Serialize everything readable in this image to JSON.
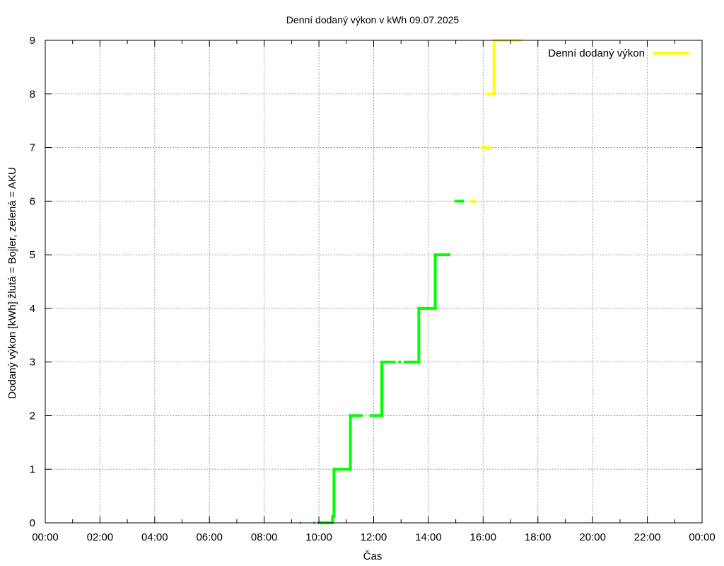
{
  "chart_data": {
    "type": "line",
    "title": "Denní dodaný výkon v kWh 09.07.2025",
    "xlabel": "Čas",
    "ylabel": "Dodaný výkon [kWh]  žlutá = Bojler, zelená = AKU",
    "xlim": [
      0,
      24
    ],
    "ylim": [
      0,
      9
    ],
    "x_ticks": [
      "00:00",
      "02:00",
      "04:00",
      "06:00",
      "08:00",
      "10:00",
      "12:00",
      "14:00",
      "16:00",
      "18:00",
      "20:00",
      "22:00",
      "00:00"
    ],
    "y_ticks": [
      "0",
      "1",
      "2",
      "3",
      "4",
      "5",
      "6",
      "7",
      "8",
      "9"
    ],
    "grid": true,
    "legend_position": "top-right",
    "legend": [
      {
        "label": "Denní dodaný výkon",
        "color": "#ffff00"
      }
    ],
    "series": [
      {
        "color": "#00ff00",
        "segments": [
          [
            [
              9.3,
              0
            ],
            [
              9.35,
              0
            ]
          ],
          [
            [
              9.8,
              0
            ],
            [
              9.85,
              0
            ]
          ],
          [
            [
              9.95,
              0
            ],
            [
              10.5,
              0
            ],
            [
              10.5,
              0.12
            ],
            [
              10.55,
              0.12
            ],
            [
              10.55,
              1
            ],
            [
              11.15,
              1
            ],
            [
              11.15,
              2
            ],
            [
              11.6,
              2
            ]
          ],
          [
            [
              11.85,
              2
            ],
            [
              12.3,
              2
            ],
            [
              12.3,
              3
            ],
            [
              12.8,
              3
            ]
          ],
          [
            [
              12.9,
              3
            ],
            [
              13.0,
              3
            ]
          ],
          [
            [
              13.1,
              3
            ],
            [
              13.65,
              3
            ],
            [
              13.65,
              4
            ],
            [
              14.25,
              4
            ],
            [
              14.25,
              5
            ],
            [
              14.8,
              5
            ]
          ],
          [
            [
              14.95,
              6
            ],
            [
              15.3,
              6
            ]
          ]
        ]
      },
      {
        "color": "#ffff00",
        "segments": [
          [
            [
              15.5,
              6
            ],
            [
              15.75,
              6
            ]
          ],
          [
            [
              15.9,
              7
            ],
            [
              16.3,
              7
            ]
          ],
          [
            [
              16.1,
              8
            ],
            [
              16.4,
              8
            ],
            [
              16.4,
              9
            ],
            [
              17.4,
              9
            ]
          ]
        ]
      }
    ]
  }
}
